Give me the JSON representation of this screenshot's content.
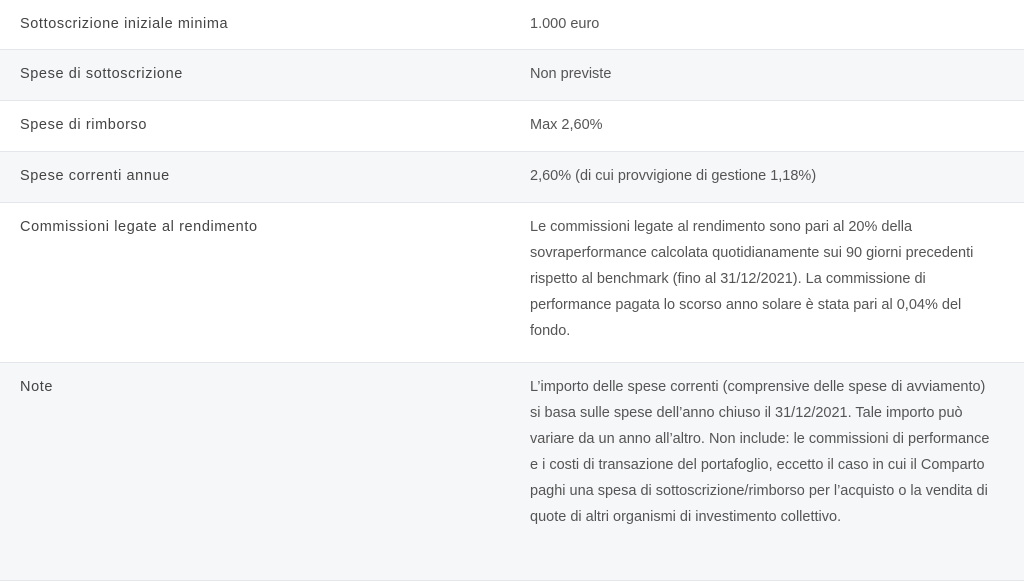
{
  "rows": [
    {
      "label": "Sottoscrizione iniziale minima",
      "value": "1.000 euro"
    },
    {
      "label": "Spese di sottoscrizione",
      "value": "Non previste"
    },
    {
      "label": "Spese di rimborso",
      "value": "Max 2,60%"
    },
    {
      "label": "Spese correnti annue",
      "value": "2,60% (di cui provvigione di gestione 1,18%)"
    },
    {
      "label": "Commissioni legate al rendimento",
      "value": "Le commissioni legate al rendimento sono pari al 20% della sovraperformance calcolata quotidianamente sui 90 giorni precedenti rispetto al benchmark (fino al 31/12/2021). La commissione di performance pagata lo scorso anno solare è stata pari al 0,04% del fondo."
    },
    {
      "label": "Note",
      "value": "L’importo delle spese correnti (comprensive delle spese di avviamento) si basa sulle spese dell’anno chiuso il 31/12/2021. Tale importo può variare da un anno all’altro. Non include: le commissioni di performance e i costi di transazione del portafoglio, eccetto il caso in cui il Comparto paghi una spesa di sottoscrizione/rimborso per l’acquisto o la vendita di quote di altri organismi di investimento collettivo."
    }
  ]
}
